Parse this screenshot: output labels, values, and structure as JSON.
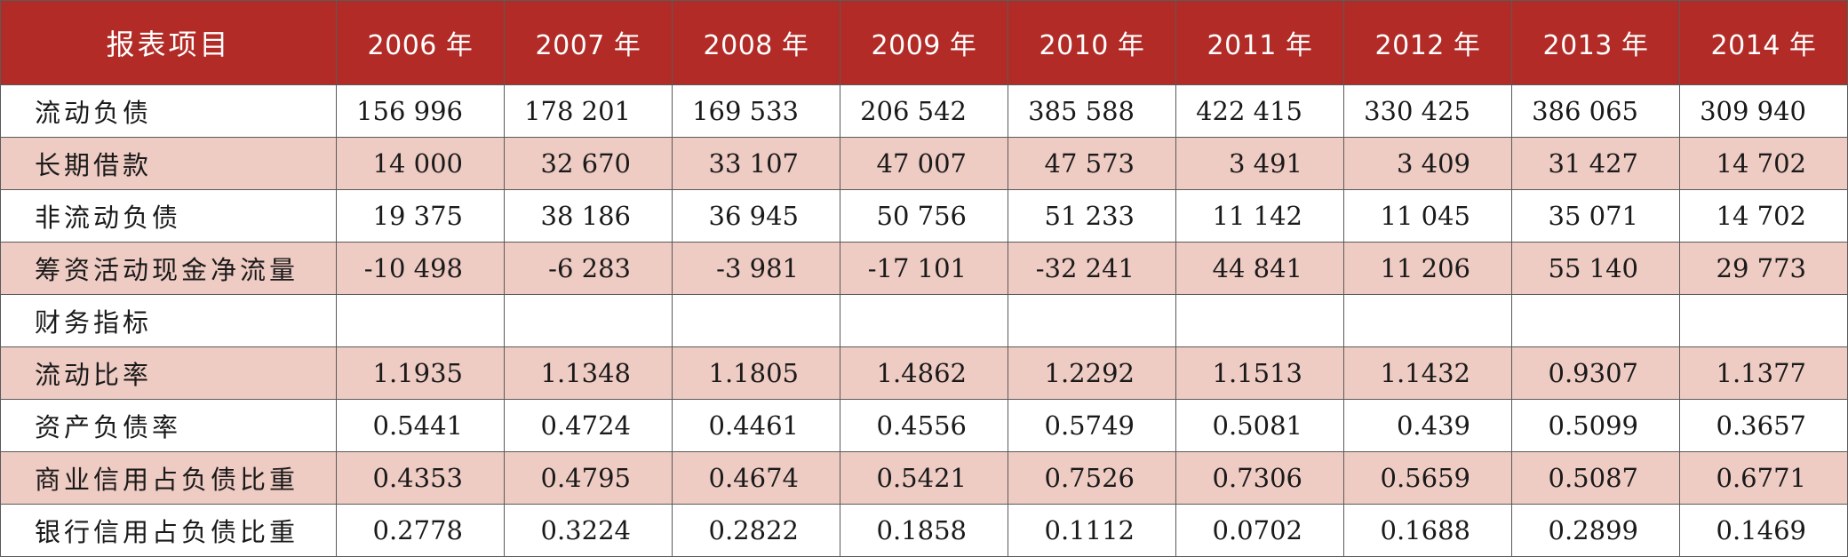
{
  "table": {
    "header": {
      "item": "报表项目",
      "years": [
        "2006 年",
        "2007 年",
        "2008 年",
        "2009 年",
        "2010 年",
        "2011 年",
        "2012 年",
        "2013 年",
        "2014 年"
      ]
    },
    "rows": [
      {
        "label": "流动负债",
        "values": [
          "156 996",
          "178 201",
          "169 533",
          "206 542",
          "385 588",
          "422 415",
          "330 425",
          "386 065",
          "309 940"
        ]
      },
      {
        "label": "长期借款",
        "values": [
          "14 000",
          "32 670",
          "33 107",
          "47 007",
          "47 573",
          "3 491",
          "3 409",
          "31 427",
          "14 702"
        ]
      },
      {
        "label": "非流动负债",
        "values": [
          "19 375",
          "38 186",
          "36 945",
          "50 756",
          "51 233",
          "11 142",
          "11 045",
          "35 071",
          "14 702"
        ]
      },
      {
        "label": "筹资活动现金净流量",
        "values": [
          "-10 498",
          "-6 283",
          "-3 981",
          "-17 101",
          "-32 241",
          "44 841",
          "11 206",
          "55 140",
          "29 773"
        ]
      },
      {
        "label": "财务指标",
        "values": [
          "",
          "",
          "",
          "",
          "",
          "",
          "",
          "",
          ""
        ]
      },
      {
        "label": "流动比率",
        "values": [
          "1.1935",
          "1.1348",
          "1.1805",
          "1.4862",
          "1.2292",
          "1.1513",
          "1.1432",
          "0.9307",
          "1.1377"
        ]
      },
      {
        "label": "资产负债率",
        "values": [
          "0.5441",
          "0.4724",
          "0.4461",
          "0.4556",
          "0.5749",
          "0.5081",
          "0.439",
          "0.5099",
          "0.3657"
        ]
      },
      {
        "label": "商业信用占负债比重",
        "values": [
          "0.4353",
          "0.4795",
          "0.4674",
          "0.5421",
          "0.7526",
          "0.7306",
          "0.5659",
          "0.5087",
          "0.6771"
        ]
      },
      {
        "label": "银行信用占负债比重",
        "values": [
          "0.2778",
          "0.3224",
          "0.2822",
          "0.1858",
          "0.1112",
          "0.0702",
          "0.1688",
          "0.2899",
          "0.1469"
        ]
      }
    ],
    "colors": {
      "header_bg": "#b22b26",
      "header_text": "#ffffff",
      "shaded_row_bg": "#eecbc3",
      "plain_row_bg": "#ffffff",
      "border": "#5a5a5a"
    }
  }
}
